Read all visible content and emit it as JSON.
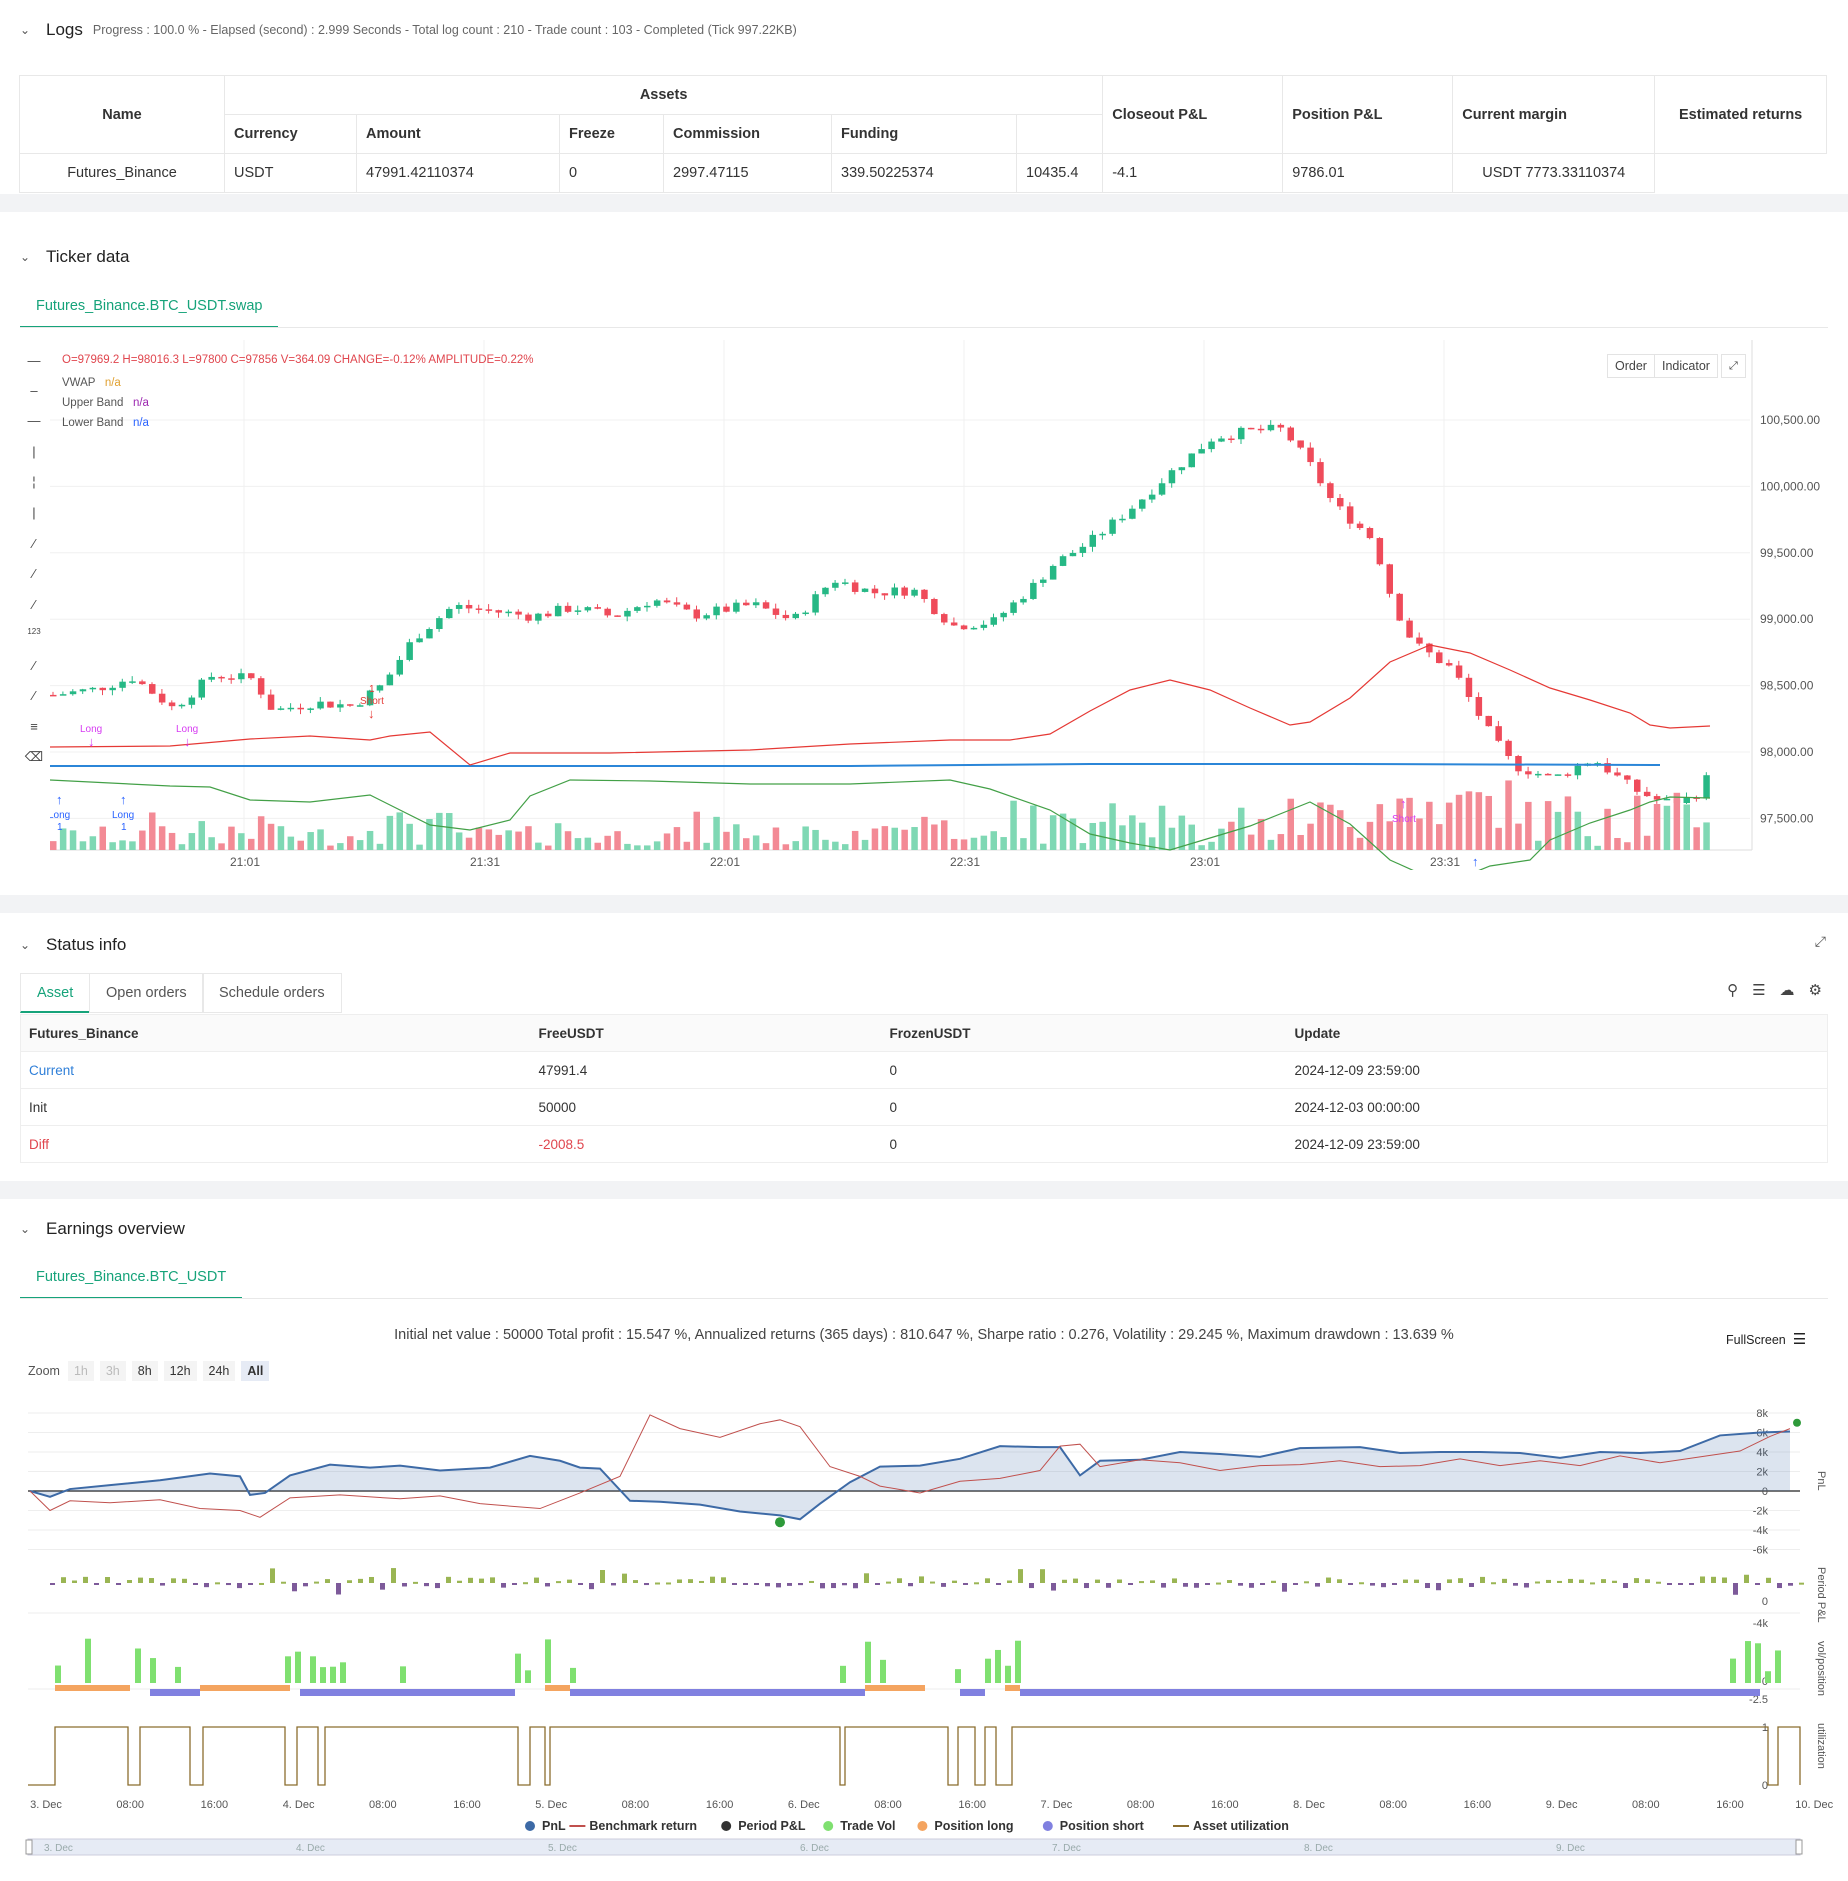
{
  "logs": {
    "title": "Logs",
    "summary": "Progress : 100.0 % - Elapsed (second) : 2.999  Seconds - Total log count : 210 - Trade count : 103 - Completed (Tick 997.22KB)"
  },
  "assets_table": {
    "headers": {
      "name": "Name",
      "assets": "Assets",
      "currency": "Currency",
      "amount": "Amount",
      "freeze": "Freeze",
      "commission": "Commission",
      "funding": "Funding",
      "closeout": "Closeout P&L",
      "position": "Position P&L",
      "margin": "Current margin",
      "est": "Estimated returns"
    },
    "row": {
      "name": "Futures_Binance",
      "currency": "USDT",
      "amount": "47991.42110374",
      "freeze": "0",
      "commission": "2997.47115",
      "funding": "339.50225374",
      "closeout": "10435.4",
      "position": "-4.1",
      "margin": "9786.01",
      "est": "USDT 7773.33110374"
    }
  },
  "ticker": {
    "title": "Ticker data",
    "tab": "Futures_Binance.BTC_USDT.swap",
    "ohlc": "O=97969.2 H=98016.3 L=97800 C=97856 V=364.09 CHANGE=-0.12% AMPLITUDE=0.22%",
    "legend": [
      {
        "name": "VWAP",
        "value": "n/a",
        "color": "#e0a030"
      },
      {
        "name": "Upper Band",
        "value": "n/a",
        "color": "#9c27b0"
      },
      {
        "name": "Lower Band",
        "value": "n/a",
        "color": "#2962ff"
      }
    ],
    "buttons": {
      "order": "Order",
      "indicator": "Indicator"
    },
    "y_ticks": [
      "100,500.00",
      "100,000.00",
      "99,500.00",
      "99,000.00",
      "98,500.00",
      "98,000.00",
      "97,500.00"
    ],
    "x_ticks": [
      "21:01",
      "21:31",
      "22:01",
      "22:31",
      "23:01",
      "23:31"
    ],
    "markers": [
      {
        "label": "Long",
        "type": "long-top"
      },
      {
        "label": "Long",
        "type": "long-top"
      },
      {
        "label": "Long",
        "sub": "1",
        "type": "long-bottom"
      },
      {
        "label": "Long",
        "sub": "1",
        "type": "long-bottom"
      },
      {
        "label": "Short",
        "sub": "1",
        "type": "short-top"
      },
      {
        "label": "Short",
        "type": "short-bottom"
      },
      {
        "label": "Long",
        "type": "long-bottom"
      }
    ]
  },
  "status": {
    "title": "Status info",
    "tabs": [
      "Asset",
      "Open orders",
      "Schedule orders"
    ],
    "headers": [
      "Futures_Binance",
      "FreeUSDT",
      "FrozenUSDT",
      "Update"
    ],
    "rows": [
      {
        "label": "Current",
        "free": "47991.4",
        "frozen": "0",
        "update": "2024-12-09 23:59:00"
      },
      {
        "label": "Init",
        "free": "50000",
        "frozen": "0",
        "update": "2024-12-03 00:00:00"
      },
      {
        "label": "Diff",
        "free": "-2008.5",
        "frozen": "0",
        "update": "2024-12-09 23:59:00"
      }
    ]
  },
  "earnings": {
    "title": "Earnings overview",
    "tab": "Futures_Binance.BTC_USDT",
    "summary": "Initial net value : 50000  Total profit : 15.547 %, Annualized returns (365 days) : 810.647 %, Sharpe ratio : 0.276, Volatility : 29.245 %, Maximum drawdown : 13.639 %",
    "fullscreen": "FullScreen",
    "zoom_label": "Zoom",
    "zoom_buttons": [
      "1h",
      "3h",
      "8h",
      "12h",
      "24h",
      "All"
    ],
    "pnl_ticks": [
      "8k",
      "6k",
      "4k",
      "2k",
      "0",
      "-2k",
      "-4k",
      "-6k"
    ],
    "period_ticks": [
      "0",
      "-4k"
    ],
    "vol_ticks": [
      "0",
      "-2.5"
    ],
    "util_ticks": [
      "1",
      "0"
    ],
    "axis_titles": [
      "PnL",
      "Period P&L",
      "vol/position",
      "utilization"
    ],
    "x_ticks": [
      "3. Dec",
      "08:00",
      "16:00",
      "4. Dec",
      "08:00",
      "16:00",
      "5. Dec",
      "08:00",
      "16:00",
      "6. Dec",
      "08:00",
      "16:00",
      "7. Dec",
      "08:00",
      "16:00",
      "8. Dec",
      "08:00",
      "16:00",
      "9. Dec",
      "08:00",
      "16:00",
      "10. Dec"
    ],
    "nav_ticks": [
      "3. Dec",
      "4. Dec",
      "5. Dec",
      "6. Dec",
      "7. Dec",
      "8. Dec",
      "9. Dec"
    ],
    "legend": [
      {
        "name": "PnL",
        "color": "#3d6aa6",
        "kind": "dot"
      },
      {
        "name": "Benchmark return",
        "color": "#c0504d",
        "kind": "line"
      },
      {
        "name": "Period P&L",
        "color": "#333333",
        "kind": "dot"
      },
      {
        "name": "Trade Vol",
        "color": "#7fe070",
        "kind": "dot"
      },
      {
        "name": "Position long",
        "color": "#f4a460",
        "kind": "dot"
      },
      {
        "name": "Position short",
        "color": "#8080e0",
        "kind": "dot"
      },
      {
        "name": "Asset utilization",
        "color": "#8b6d2e",
        "kind": "line"
      }
    ]
  }
}
